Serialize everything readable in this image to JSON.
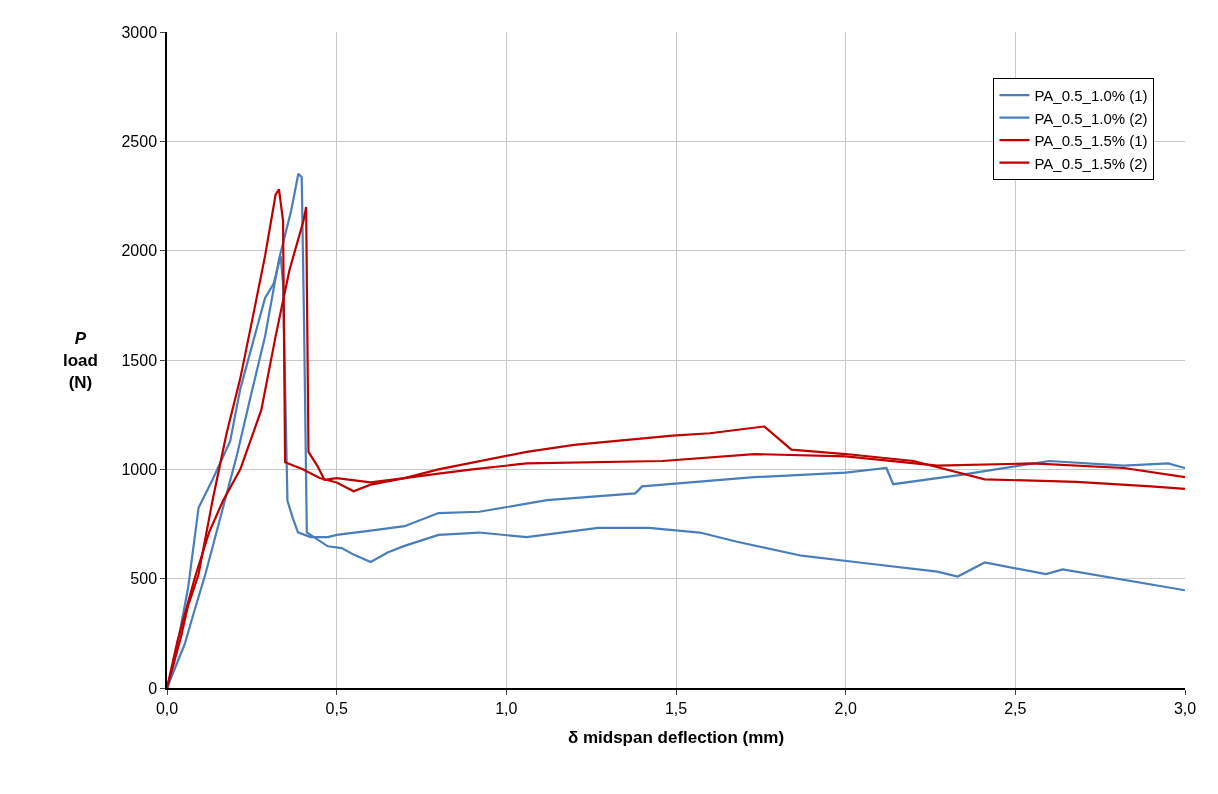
{
  "chart_data": {
    "type": "line",
    "xlabel": "δ midspan deflection (mm)",
    "ylabel": "P\nload\n(N)",
    "xlim": [
      0,
      3
    ],
    "xticks": [
      {
        "value": 0,
        "label": "0,0"
      },
      {
        "value": 0.5,
        "label": "0,5"
      },
      {
        "value": 1,
        "label": "1,0"
      },
      {
        "value": 1.5,
        "label": "1,5"
      },
      {
        "value": 2,
        "label": "2,0"
      },
      {
        "value": 2.5,
        "label": "2,5"
      },
      {
        "value": 3,
        "label": "3,0"
      }
    ],
    "ylim": [
      0,
      3000
    ],
    "yticks": [
      0,
      500,
      1000,
      1500,
      2000,
      2500,
      3000
    ],
    "grid": true,
    "legend": "top right",
    "marker": "none",
    "line_style": "solid",
    "series": [
      {
        "name": "PA_0.5_1.0% (1)",
        "color": "#4a7ebb",
        "x": [
          0,
          0.052,
          0.082,
          0.113,
          0.165,
          0.206,
          0.247,
          0.289,
          0.33,
          0.366,
          0.387,
          0.397,
          0.404,
          0.412,
          0.443,
          0.474,
          0.515,
          0.55,
          0.6,
          0.65,
          0.7,
          0.8,
          0.92,
          1.06,
          1.27,
          1.42,
          1.57,
          1.68,
          1.87,
          2.04,
          2.27,
          2.33,
          2.41,
          2.59,
          2.64,
          3.0
        ],
        "values": [
          0,
          200,
          360,
          520,
          824,
          1064,
          1336,
          1608,
          1960,
          2184,
          2352,
          2336,
          1656,
          712,
          680,
          648,
          640,
          610,
          576,
          620,
          650,
          700,
          711,
          690,
          732,
          732,
          711,
          669,
          605,
          574,
          532,
          510,
          574,
          521,
          542,
          447
        ]
      },
      {
        "name": "PA_0.5_1.0% (2)",
        "color": "#4a7ebb",
        "x": [
          0,
          0.021,
          0.062,
          0.093,
          0.134,
          0.186,
          0.216,
          0.258,
          0.289,
          0.314,
          0.335,
          0.342,
          0.355,
          0.371,
          0.386,
          0.423,
          0.474,
          0.5,
          0.6,
          0.7,
          0.8,
          0.92,
          1.12,
          1.38,
          1.4,
          1.73,
          2.0,
          2.12,
          2.14,
          2.34,
          2.6,
          2.82,
          2.95,
          3.0
        ],
        "values": [
          0,
          120,
          456,
          824,
          952,
          1128,
          1368,
          1608,
          1784,
          1848,
          1976,
          1848,
          856,
          776,
          712,
          690,
          690,
          700,
          720,
          740,
          800,
          806,
          859,
          890,
          922,
          964,
          985,
          1006,
          932,
          975,
          1038,
          1017,
          1027,
          1006
        ]
      },
      {
        "name": "PA_0.5_1.5% (1)",
        "color": "#c00000",
        "x": [
          0,
          0.041,
          0.062,
          0.093,
          0.134,
          0.175,
          0.216,
          0.258,
          0.289,
          0.32,
          0.33,
          0.342,
          0.348,
          0.4,
          0.45,
          0.5,
          0.55,
          0.6,
          0.7,
          0.8,
          1.06,
          1.2,
          1.49,
          1.6,
          1.76,
          1.84,
          2.0,
          2.2,
          2.41,
          2.68,
          2.9,
          3.0
        ],
        "values": [
          0,
          232,
          376,
          520,
          856,
          1160,
          1416,
          1736,
          1976,
          2256,
          2280,
          2136,
          1032,
          1000,
          960,
          940,
          900,
          930,
          960,
          1000,
          1080,
          1112,
          1154,
          1165,
          1196,
          1090,
          1070,
          1038,
          954,
          943,
          922,
          911
        ]
      },
      {
        "name": "PA_0.5_1.5% (2)",
        "color": "#c00000",
        "x": [
          0,
          0.031,
          0.082,
          0.124,
          0.165,
          0.216,
          0.278,
          0.32,
          0.361,
          0.402,
          0.41,
          0.417,
          0.443,
          0.464,
          0.5,
          0.6,
          0.7,
          0.8,
          0.9,
          1.06,
          1.46,
          1.73,
          2.0,
          2.27,
          2.55,
          2.82,
          3.0
        ],
        "values": [
          0,
          216,
          504,
          712,
          856,
          1000,
          1272,
          1608,
          1912,
          2136,
          2200,
          1080,
          1016,
          952,
          960,
          940,
          960,
          980,
          1000,
          1027,
          1038,
          1070,
          1059,
          1017,
          1027,
          1006,
          964
        ]
      }
    ]
  }
}
